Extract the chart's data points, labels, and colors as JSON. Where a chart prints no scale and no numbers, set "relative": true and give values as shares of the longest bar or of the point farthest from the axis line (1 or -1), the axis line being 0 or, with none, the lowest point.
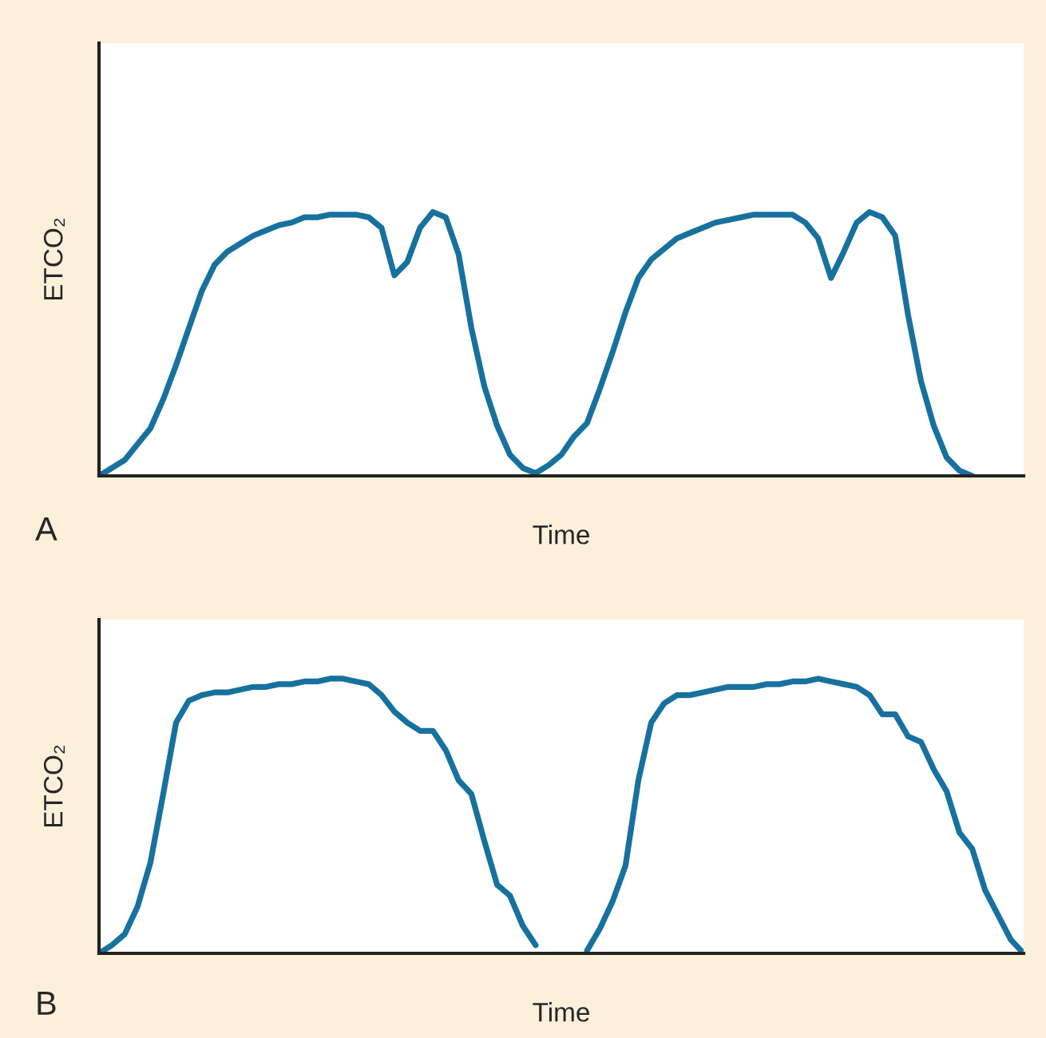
{
  "chart_data": [
    {
      "type": "line",
      "relative": true,
      "xlabel": "Time",
      "ylabel": "ETCO₂",
      "annotations": [
        "A"
      ],
      "categories": [
        null,
        null,
        null,
        null,
        null,
        null,
        null,
        null,
        null,
        null,
        null,
        null,
        null,
        null,
        null,
        null,
        null,
        null,
        null,
        null,
        null,
        null,
        null,
        null,
        null,
        null,
        null,
        null,
        null,
        null,
        null,
        null,
        null,
        null,
        null,
        null,
        null,
        null,
        null,
        null,
        null,
        null,
        null,
        null,
        null,
        null,
        null,
        null,
        null,
        null,
        null,
        null,
        null,
        null,
        null,
        null,
        null,
        null,
        null,
        null,
        null,
        null,
        null,
        null,
        null,
        null,
        null,
        null,
        null,
        null,
        null,
        null,
        null
      ],
      "series": [
        {
          "color": "#17719f",
          "values": [
            0,
            0.03,
            0.06,
            0.12,
            0.18,
            0.29,
            0.42,
            0.56,
            0.7,
            0.8,
            0.85,
            0.88,
            0.91,
            0.93,
            0.95,
            0.96,
            0.98,
            0.98,
            0.99,
            0.99,
            0.99,
            0.98,
            0.94,
            0.76,
            0.81,
            0.94,
            1,
            0.98,
            0.84,
            0.56,
            0.34,
            0.19,
            0.08,
            0.03,
            0.01,
            0.04,
            0.08,
            0.15,
            0.2,
            0.33,
            0.47,
            0.62,
            0.75,
            0.82,
            0.86,
            0.9,
            0.92,
            0.94,
            0.96,
            0.97,
            0.98,
            0.99,
            0.99,
            0.99,
            0.99,
            0.96,
            0.9,
            0.75,
            0.85,
            0.96,
            1,
            0.98,
            0.91,
            0.61,
            0.36,
            0.19,
            0.07,
            0.02,
            0,
            null,
            null,
            null,
            null
          ]
        }
      ]
    },
    {
      "type": "line",
      "relative": true,
      "xlabel": "Time",
      "ylabel": "ETCO₂",
      "annotations": [
        "B"
      ],
      "categories": [
        null,
        null,
        null,
        null,
        null,
        null,
        null,
        null,
        null,
        null,
        null,
        null,
        null,
        null,
        null,
        null,
        null,
        null,
        null,
        null,
        null,
        null,
        null,
        null,
        null,
        null,
        null,
        null,
        null,
        null,
        null,
        null,
        null,
        null,
        null,
        null,
        null,
        null,
        null,
        null,
        null,
        null,
        null,
        null,
        null,
        null,
        null,
        null,
        null,
        null,
        null,
        null,
        null,
        null,
        null,
        null,
        null,
        null,
        null,
        null,
        null,
        null,
        null,
        null,
        null,
        null,
        null,
        null,
        null,
        null,
        null,
        null,
        null
      ],
      "series": [
        {
          "color": "#17719f",
          "values": [
            0,
            0.03,
            0.07,
            0.17,
            0.33,
            0.58,
            0.84,
            0.92,
            0.94,
            0.95,
            0.95,
            0.96,
            0.97,
            0.97,
            0.98,
            0.98,
            0.99,
            0.99,
            1,
            1,
            0.99,
            0.98,
            0.94,
            0.88,
            0.84,
            0.81,
            0.81,
            0.74,
            0.63,
            0.58,
            0.41,
            0.25,
            0.21,
            0.1,
            0.03,
            null,
            null,
            null,
            0.01,
            0.09,
            0.19,
            0.32,
            0.63,
            0.84,
            0.91,
            0.94,
            0.94,
            0.95,
            0.96,
            0.97,
            0.97,
            0.97,
            0.98,
            0.98,
            0.99,
            0.99,
            1,
            0.99,
            0.98,
            0.97,
            0.94,
            0.87,
            0.87,
            0.79,
            0.77,
            0.67,
            0.59,
            0.44,
            0.38,
            0.23,
            0.14,
            0.05,
            0
          ]
        }
      ]
    }
  ]
}
